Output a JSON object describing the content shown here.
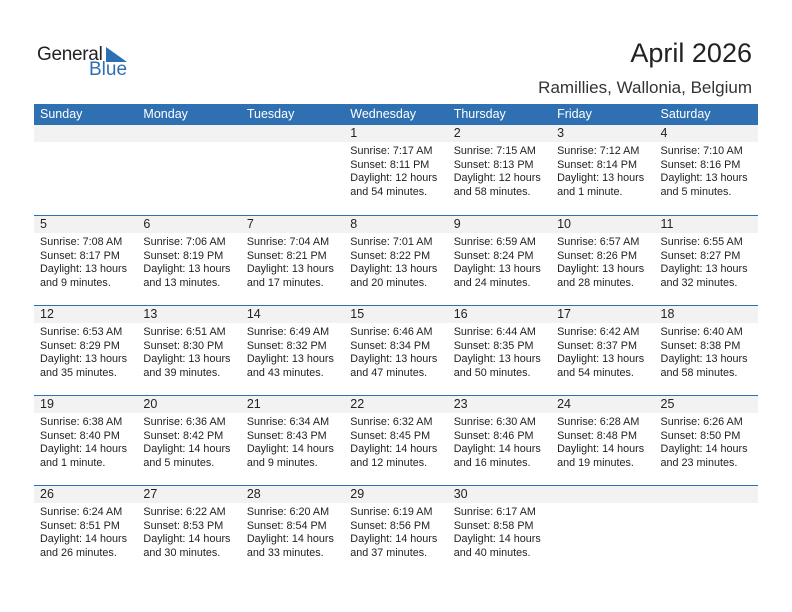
{
  "logo": {
    "general": "General",
    "blue": "Blue"
  },
  "title": "April 2026",
  "location": "Ramillies, Wallonia, Belgium",
  "days": [
    "Sunday",
    "Monday",
    "Tuesday",
    "Wednesday",
    "Thursday",
    "Friday",
    "Saturday"
  ],
  "colors": {
    "accent": "#2e70b1",
    "band": "#f2f2f2"
  },
  "weeks": [
    [
      null,
      null,
      null,
      {
        "day": "1",
        "sunrise": "Sunrise: 7:17 AM",
        "sunset": "Sunset: 8:11 PM",
        "daylight": "Daylight: 12 hours",
        "minutes": "and 54 minutes."
      },
      {
        "day": "2",
        "sunrise": "Sunrise: 7:15 AM",
        "sunset": "Sunset: 8:13 PM",
        "daylight": "Daylight: 12 hours",
        "minutes": "and 58 minutes."
      },
      {
        "day": "3",
        "sunrise": "Sunrise: 7:12 AM",
        "sunset": "Sunset: 8:14 PM",
        "daylight": "Daylight: 13 hours",
        "minutes": "and 1 minute."
      },
      {
        "day": "4",
        "sunrise": "Sunrise: 7:10 AM",
        "sunset": "Sunset: 8:16 PM",
        "daylight": "Daylight: 13 hours",
        "minutes": "and 5 minutes."
      }
    ],
    [
      {
        "day": "5",
        "sunrise": "Sunrise: 7:08 AM",
        "sunset": "Sunset: 8:17 PM",
        "daylight": "Daylight: 13 hours",
        "minutes": "and 9 minutes."
      },
      {
        "day": "6",
        "sunrise": "Sunrise: 7:06 AM",
        "sunset": "Sunset: 8:19 PM",
        "daylight": "Daylight: 13 hours",
        "minutes": "and 13 minutes."
      },
      {
        "day": "7",
        "sunrise": "Sunrise: 7:04 AM",
        "sunset": "Sunset: 8:21 PM",
        "daylight": "Daylight: 13 hours",
        "minutes": "and 17 minutes."
      },
      {
        "day": "8",
        "sunrise": "Sunrise: 7:01 AM",
        "sunset": "Sunset: 8:22 PM",
        "daylight": "Daylight: 13 hours",
        "minutes": "and 20 minutes."
      },
      {
        "day": "9",
        "sunrise": "Sunrise: 6:59 AM",
        "sunset": "Sunset: 8:24 PM",
        "daylight": "Daylight: 13 hours",
        "minutes": "and 24 minutes."
      },
      {
        "day": "10",
        "sunrise": "Sunrise: 6:57 AM",
        "sunset": "Sunset: 8:26 PM",
        "daylight": "Daylight: 13 hours",
        "minutes": "and 28 minutes."
      },
      {
        "day": "11",
        "sunrise": "Sunrise: 6:55 AM",
        "sunset": "Sunset: 8:27 PM",
        "daylight": "Daylight: 13 hours",
        "minutes": "and 32 minutes."
      }
    ],
    [
      {
        "day": "12",
        "sunrise": "Sunrise: 6:53 AM",
        "sunset": "Sunset: 8:29 PM",
        "daylight": "Daylight: 13 hours",
        "minutes": "and 35 minutes."
      },
      {
        "day": "13",
        "sunrise": "Sunrise: 6:51 AM",
        "sunset": "Sunset: 8:30 PM",
        "daylight": "Daylight: 13 hours",
        "minutes": "and 39 minutes."
      },
      {
        "day": "14",
        "sunrise": "Sunrise: 6:49 AM",
        "sunset": "Sunset: 8:32 PM",
        "daylight": "Daylight: 13 hours",
        "minutes": "and 43 minutes."
      },
      {
        "day": "15",
        "sunrise": "Sunrise: 6:46 AM",
        "sunset": "Sunset: 8:34 PM",
        "daylight": "Daylight: 13 hours",
        "minutes": "and 47 minutes."
      },
      {
        "day": "16",
        "sunrise": "Sunrise: 6:44 AM",
        "sunset": "Sunset: 8:35 PM",
        "daylight": "Daylight: 13 hours",
        "minutes": "and 50 minutes."
      },
      {
        "day": "17",
        "sunrise": "Sunrise: 6:42 AM",
        "sunset": "Sunset: 8:37 PM",
        "daylight": "Daylight: 13 hours",
        "minutes": "and 54 minutes."
      },
      {
        "day": "18",
        "sunrise": "Sunrise: 6:40 AM",
        "sunset": "Sunset: 8:38 PM",
        "daylight": "Daylight: 13 hours",
        "minutes": "and 58 minutes."
      }
    ],
    [
      {
        "day": "19",
        "sunrise": "Sunrise: 6:38 AM",
        "sunset": "Sunset: 8:40 PM",
        "daylight": "Daylight: 14 hours",
        "minutes": "and 1 minute."
      },
      {
        "day": "20",
        "sunrise": "Sunrise: 6:36 AM",
        "sunset": "Sunset: 8:42 PM",
        "daylight": "Daylight: 14 hours",
        "minutes": "and 5 minutes."
      },
      {
        "day": "21",
        "sunrise": "Sunrise: 6:34 AM",
        "sunset": "Sunset: 8:43 PM",
        "daylight": "Daylight: 14 hours",
        "minutes": "and 9 minutes."
      },
      {
        "day": "22",
        "sunrise": "Sunrise: 6:32 AM",
        "sunset": "Sunset: 8:45 PM",
        "daylight": "Daylight: 14 hours",
        "minutes": "and 12 minutes."
      },
      {
        "day": "23",
        "sunrise": "Sunrise: 6:30 AM",
        "sunset": "Sunset: 8:46 PM",
        "daylight": "Daylight: 14 hours",
        "minutes": "and 16 minutes."
      },
      {
        "day": "24",
        "sunrise": "Sunrise: 6:28 AM",
        "sunset": "Sunset: 8:48 PM",
        "daylight": "Daylight: 14 hours",
        "minutes": "and 19 minutes."
      },
      {
        "day": "25",
        "sunrise": "Sunrise: 6:26 AM",
        "sunset": "Sunset: 8:50 PM",
        "daylight": "Daylight: 14 hours",
        "minutes": "and 23 minutes."
      }
    ],
    [
      {
        "day": "26",
        "sunrise": "Sunrise: 6:24 AM",
        "sunset": "Sunset: 8:51 PM",
        "daylight": "Daylight: 14 hours",
        "minutes": "and 26 minutes."
      },
      {
        "day": "27",
        "sunrise": "Sunrise: 6:22 AM",
        "sunset": "Sunset: 8:53 PM",
        "daylight": "Daylight: 14 hours",
        "minutes": "and 30 minutes."
      },
      {
        "day": "28",
        "sunrise": "Sunrise: 6:20 AM",
        "sunset": "Sunset: 8:54 PM",
        "daylight": "Daylight: 14 hours",
        "minutes": "and 33 minutes."
      },
      {
        "day": "29",
        "sunrise": "Sunrise: 6:19 AM",
        "sunset": "Sunset: 8:56 PM",
        "daylight": "Daylight: 14 hours",
        "minutes": "and 37 minutes."
      },
      {
        "day": "30",
        "sunrise": "Sunrise: 6:17 AM",
        "sunset": "Sunset: 8:58 PM",
        "daylight": "Daylight: 14 hours",
        "minutes": "and 40 minutes."
      },
      null,
      null
    ]
  ]
}
